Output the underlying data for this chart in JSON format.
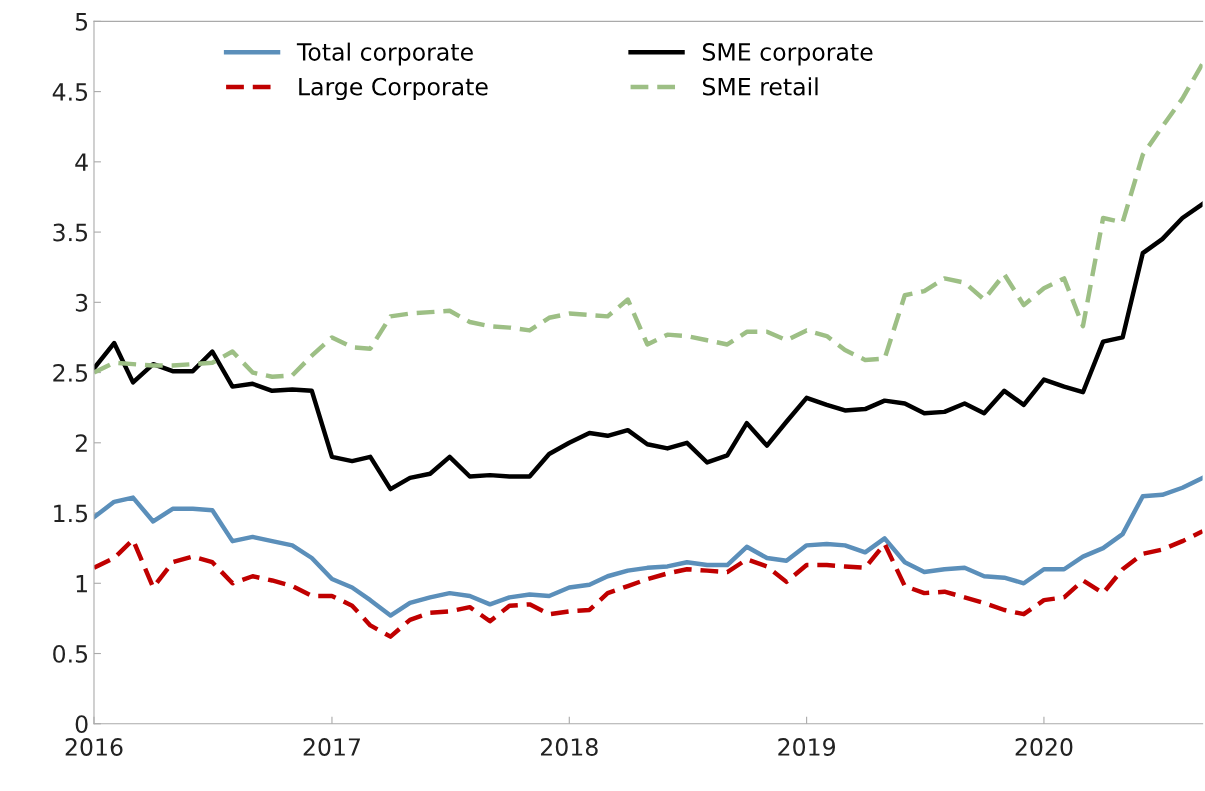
{
  "chart_data": {
    "type": "line",
    "x": [
      "2016-01",
      "2016-02",
      "2016-03",
      "2016-04",
      "2016-05",
      "2016-06",
      "2016-07",
      "2016-08",
      "2016-09",
      "2016-10",
      "2016-11",
      "2016-12",
      "2017-01",
      "2017-02",
      "2017-03",
      "2017-04",
      "2017-05",
      "2017-06",
      "2017-07",
      "2017-08",
      "2017-09",
      "2017-10",
      "2017-11",
      "2017-12",
      "2018-01",
      "2018-02",
      "2018-03",
      "2018-04",
      "2018-05",
      "2018-06",
      "2018-07",
      "2018-08",
      "2018-09",
      "2018-10",
      "2018-11",
      "2018-12",
      "2019-01",
      "2019-02",
      "2019-03",
      "2019-04",
      "2019-05",
      "2019-06",
      "2019-07",
      "2019-08",
      "2019-09",
      "2019-10",
      "2019-11",
      "2019-12",
      "2020-01",
      "2020-02",
      "2020-03",
      "2020-04",
      "2020-05",
      "2020-06",
      "2020-07",
      "2020-08",
      "2020-09"
    ],
    "series": [
      {
        "name": "Total corporate",
        "color": "#5b8fba",
        "line_style": "solid",
        "values": [
          1.47,
          1.58,
          1.61,
          1.44,
          1.53,
          1.53,
          1.52,
          1.3,
          1.33,
          1.3,
          1.27,
          1.18,
          1.03,
          0.97,
          0.88,
          0.77,
          0.86,
          0.9,
          0.93,
          0.91,
          0.85,
          0.9,
          0.92,
          0.91,
          0.97,
          0.99,
          1.05,
          1.09,
          1.11,
          1.12,
          1.15,
          1.13,
          1.13,
          1.26,
          1.18,
          1.16,
          1.27,
          1.28,
          1.27,
          1.22,
          1.32,
          1.15,
          1.08,
          1.1,
          1.11,
          1.05,
          1.04,
          1.0,
          1.1,
          1.1,
          1.19,
          1.25,
          1.35,
          1.62,
          1.63,
          1.68,
          1.75
        ]
      },
      {
        "name": "Large Corporate",
        "color": "#c00000",
        "line_style": "dashed",
        "values": [
          1.11,
          1.18,
          1.31,
          0.97,
          1.15,
          1.19,
          1.15,
          1.0,
          1.05,
          1.02,
          0.98,
          0.91,
          0.91,
          0.84,
          0.7,
          0.62,
          0.74,
          0.79,
          0.8,
          0.83,
          0.73,
          0.84,
          0.85,
          0.78,
          0.8,
          0.81,
          0.93,
          0.98,
          1.03,
          1.07,
          1.1,
          1.09,
          1.08,
          1.17,
          1.12,
          1.01,
          1.13,
          1.13,
          1.12,
          1.11,
          1.28,
          0.98,
          0.93,
          0.94,
          0.9,
          0.86,
          0.81,
          0.78,
          0.88,
          0.9,
          1.02,
          0.93,
          1.1,
          1.21,
          1.24,
          1.3,
          1.37
        ]
      },
      {
        "name": "SME corporate",
        "color": "#000000",
        "line_style": "solid",
        "values": [
          2.53,
          2.71,
          2.43,
          2.56,
          2.51,
          2.51,
          2.65,
          2.4,
          2.42,
          2.37,
          2.38,
          2.37,
          1.9,
          1.87,
          1.9,
          1.67,
          1.75,
          1.78,
          1.9,
          1.76,
          1.77,
          1.76,
          1.76,
          1.92,
          2.0,
          2.07,
          2.05,
          2.09,
          1.99,
          1.96,
          2.0,
          1.86,
          1.91,
          2.14,
          1.98,
          2.15,
          2.32,
          2.27,
          2.23,
          2.24,
          2.3,
          2.28,
          2.21,
          2.22,
          2.28,
          2.21,
          2.37,
          2.27,
          2.45,
          2.4,
          2.36,
          2.72,
          2.75,
          3.35,
          3.45,
          3.6,
          3.7
        ]
      },
      {
        "name": "SME retail",
        "color": "#9dbf85",
        "line_style": "dashed",
        "values": [
          2.5,
          2.57,
          2.56,
          2.55,
          2.55,
          2.56,
          2.57,
          2.65,
          2.5,
          2.47,
          2.48,
          2.62,
          2.75,
          2.68,
          2.67,
          2.9,
          2.92,
          2.93,
          2.94,
          2.86,
          2.83,
          2.82,
          2.8,
          2.89,
          2.92,
          2.91,
          2.9,
          3.02,
          2.7,
          2.77,
          2.76,
          2.73,
          2.7,
          2.79,
          2.79,
          2.73,
          2.8,
          2.76,
          2.66,
          2.59,
          2.6,
          3.05,
          3.08,
          3.17,
          3.14,
          3.02,
          3.2,
          2.98,
          3.1,
          3.17,
          2.83,
          3.6,
          3.57,
          4.05,
          4.25,
          4.45,
          4.7
        ]
      }
    ],
    "xlim": [
      "2016-01",
      "2020-09"
    ],
    "xticks": [
      {
        "value": "2016-01",
        "label": "2016"
      },
      {
        "value": "2017-01",
        "label": "2017"
      },
      {
        "value": "2018-01",
        "label": "2018"
      },
      {
        "value": "2019-01",
        "label": "2019"
      },
      {
        "value": "2020-01",
        "label": "2020"
      }
    ],
    "ylim": [
      0,
      5
    ],
    "yticks": [
      0,
      0.5,
      1,
      1.5,
      2,
      2.5,
      3,
      3.5,
      4,
      4.5,
      5
    ],
    "grid": false,
    "legend": "top left",
    "marker": "none"
  }
}
